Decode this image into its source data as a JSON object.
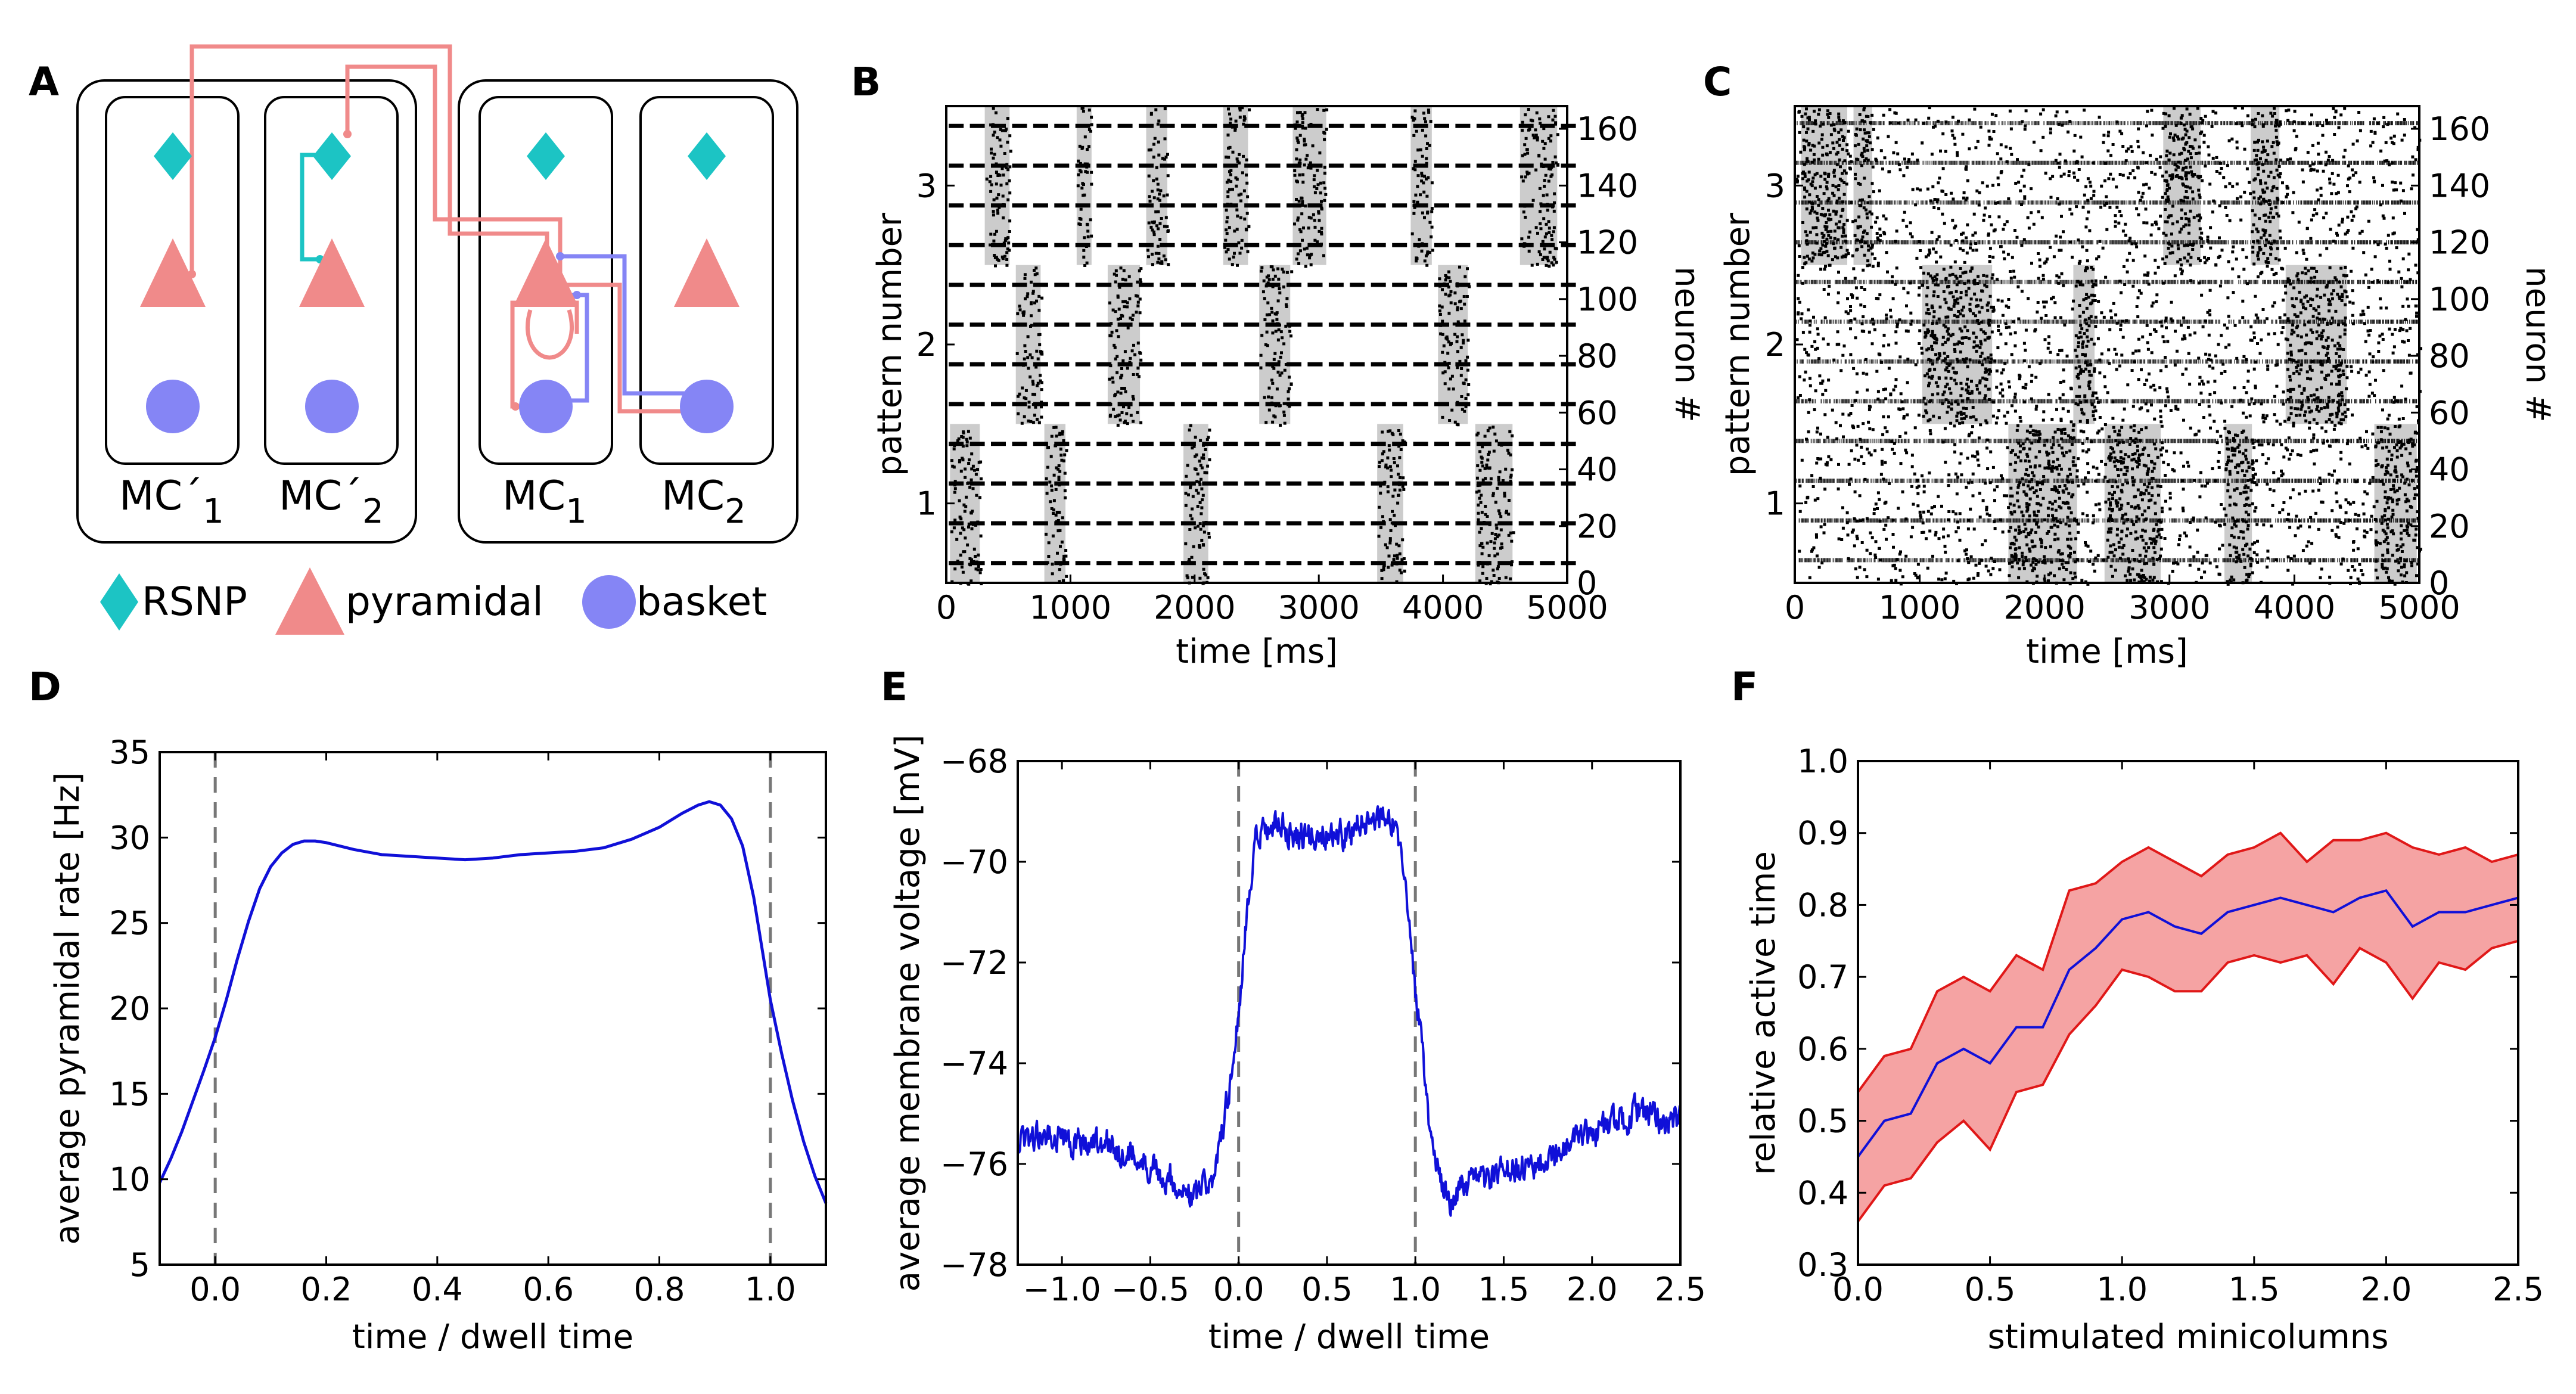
{
  "colors": {
    "rsnp": "#1cc4c4",
    "pyramidal": "#f08a8a",
    "basket": "#8585f5",
    "series_blue": "#1010d8",
    "band_red": "#e01818",
    "band_fill": "#f5a3a3",
    "raster_shade": "#cccccc",
    "dashed": "#777777"
  },
  "panel_letters": [
    "A",
    "B",
    "C",
    "D",
    "E",
    "F"
  ],
  "panel_A": {
    "mc_labels": [
      {
        "base": "MC´",
        "sub": "1"
      },
      {
        "base": "MC´",
        "sub": "2"
      },
      {
        "base": "MC",
        "sub": "1"
      },
      {
        "base": "MC",
        "sub": "2"
      }
    ],
    "legend": [
      {
        "icon": "rsnp-diamond-icon",
        "label": "RSNP"
      },
      {
        "icon": "pyramidal-triangle-icon",
        "label": "pyramidal"
      },
      {
        "icon": "basket-circle-icon",
        "label": "basket"
      }
    ]
  },
  "chart_data": [
    {
      "panel": "B",
      "type": "scatter",
      "title": "",
      "xlabel": "time [ms]",
      "ylabel_left": "pattern number",
      "ylabel_right": "neuron #",
      "xlim": [
        0,
        5000
      ],
      "ylim": [
        0,
        168
      ],
      "x_ticks": [
        0,
        1000,
        2000,
        3000,
        4000,
        5000
      ],
      "y_right_ticks": [
        0,
        20,
        40,
        60,
        80,
        100,
        120,
        140,
        160
      ],
      "y_left_ticks": [
        {
          "label": "1",
          "value": 28
        },
        {
          "label": "2",
          "value": 84
        },
        {
          "label": "3",
          "value": 140
        }
      ],
      "active_periods": [
        {
          "pattern": 1,
          "start": 30,
          "end": 270
        },
        {
          "pattern": 3,
          "start": 310,
          "end": 510
        },
        {
          "pattern": 2,
          "start": 560,
          "end": 760
        },
        {
          "pattern": 1,
          "start": 790,
          "end": 960
        },
        {
          "pattern": 3,
          "start": 1050,
          "end": 1170
        },
        {
          "pattern": 2,
          "start": 1300,
          "end": 1560
        },
        {
          "pattern": 3,
          "start": 1610,
          "end": 1780
        },
        {
          "pattern": 1,
          "start": 1910,
          "end": 2110
        },
        {
          "pattern": 3,
          "start": 2230,
          "end": 2430
        },
        {
          "pattern": 2,
          "start": 2520,
          "end": 2770
        },
        {
          "pattern": 3,
          "start": 2790,
          "end": 3060
        },
        {
          "pattern": 1,
          "start": 3470,
          "end": 3680
        },
        {
          "pattern": 3,
          "start": 3740,
          "end": 3910
        },
        {
          "pattern": 2,
          "start": 3960,
          "end": 4200
        },
        {
          "pattern": 1,
          "start": 4260,
          "end": 4560
        },
        {
          "pattern": 3,
          "start": 4620,
          "end": 4920
        }
      ],
      "tonic_rows": [
        7,
        21,
        35,
        49,
        63,
        77,
        91,
        105,
        119,
        133,
        147,
        161
      ]
    },
    {
      "panel": "C",
      "type": "scatter",
      "title": "",
      "xlabel": "time [ms]",
      "ylabel_left": "pattern number",
      "ylabel_right": "neuron #",
      "xlim": [
        0,
        5000
      ],
      "ylim": [
        0,
        168
      ],
      "x_ticks": [
        0,
        1000,
        2000,
        3000,
        4000,
        5000
      ],
      "y_right_ticks": [
        0,
        20,
        40,
        60,
        80,
        100,
        120,
        140,
        160
      ],
      "y_left_ticks": [
        {
          "label": "1",
          "value": 28
        },
        {
          "label": "2",
          "value": 84
        },
        {
          "label": "3",
          "value": 140
        }
      ],
      "active_periods": [
        {
          "pattern": 3,
          "start": 50,
          "end": 420
        },
        {
          "pattern": 3,
          "start": 470,
          "end": 620
        },
        {
          "pattern": 2,
          "start": 1020,
          "end": 1580
        },
        {
          "pattern": 1,
          "start": 1710,
          "end": 2260
        },
        {
          "pattern": 2,
          "start": 2230,
          "end": 2400
        },
        {
          "pattern": 1,
          "start": 2480,
          "end": 2930
        },
        {
          "pattern": 3,
          "start": 2950,
          "end": 3250
        },
        {
          "pattern": 1,
          "start": 3440,
          "end": 3660
        },
        {
          "pattern": 3,
          "start": 3650,
          "end": 3880
        },
        {
          "pattern": 2,
          "start": 3930,
          "end": 4420
        },
        {
          "pattern": 1,
          "start": 4640,
          "end": 4980
        }
      ],
      "tonic_rows": [
        8,
        22,
        36,
        50,
        64,
        78,
        92,
        106,
        120,
        134,
        148,
        162
      ]
    },
    {
      "panel": "D",
      "type": "line",
      "title": "",
      "xlabel": "time / dwell time",
      "ylabel": "average pyramidal rate [Hz]",
      "xlim": [
        -0.1,
        1.1
      ],
      "ylim": [
        5,
        35
      ],
      "x_ticks": [
        "0.0",
        "0.2",
        "0.4",
        "0.6",
        "0.8",
        "1.0"
      ],
      "y_ticks": [
        "5",
        "10",
        "15",
        "20",
        "25",
        "30",
        "35"
      ],
      "vlines": [
        0.0,
        1.0
      ],
      "series": [
        {
          "name": "average pyramidal rate",
          "x": [
            -0.1,
            -0.08,
            -0.06,
            -0.04,
            -0.02,
            0.0,
            0.02,
            0.04,
            0.06,
            0.08,
            0.1,
            0.12,
            0.14,
            0.16,
            0.18,
            0.2,
            0.25,
            0.3,
            0.35,
            0.4,
            0.45,
            0.5,
            0.55,
            0.6,
            0.65,
            0.7,
            0.75,
            0.8,
            0.84,
            0.87,
            0.89,
            0.91,
            0.93,
            0.95,
            0.97,
            0.99,
            1.0,
            1.02,
            1.04,
            1.06,
            1.08,
            1.1
          ],
          "y": [
            9.8,
            11.2,
            12.8,
            14.6,
            16.4,
            18.3,
            20.5,
            22.9,
            25.1,
            27.0,
            28.3,
            29.1,
            29.6,
            29.8,
            29.8,
            29.7,
            29.3,
            29.0,
            28.9,
            28.8,
            28.7,
            28.8,
            29.0,
            29.1,
            29.2,
            29.4,
            29.9,
            30.6,
            31.4,
            31.9,
            32.1,
            31.9,
            31.1,
            29.5,
            26.5,
            22.5,
            20.5,
            17.4,
            14.6,
            12.2,
            10.2,
            8.6
          ]
        }
      ]
    },
    {
      "panel": "E",
      "type": "line",
      "title": "",
      "xlabel": "time / dwell time",
      "ylabel": "average membrane voltage [mV]",
      "xlim": [
        -1.25,
        2.5
      ],
      "ylim": [
        -78,
        -68
      ],
      "x_ticks": [
        "−1.0",
        "−0.5",
        "0.0",
        "0.5",
        "1.0",
        "1.5",
        "2.0",
        "2.5"
      ],
      "y_ticks": [
        "−78",
        "−76",
        "−74",
        "−72",
        "−70",
        "−68"
      ],
      "vlines": [
        0.0,
        1.0
      ],
      "noise_amplitude_mV": 0.25,
      "series": [
        {
          "name": "average membrane voltage",
          "x": [
            -1.25,
            -1.0,
            -0.75,
            -0.5,
            -0.35,
            -0.25,
            -0.15,
            -0.1,
            -0.05,
            0.0,
            0.05,
            0.1,
            0.2,
            0.4,
            0.6,
            0.75,
            0.85,
            0.9,
            0.95,
            1.0,
            1.05,
            1.1,
            1.15,
            1.2,
            1.3,
            1.5,
            1.75,
            2.0,
            2.25,
            2.5
          ],
          "y": [
            -75.5,
            -75.5,
            -75.6,
            -76.0,
            -76.4,
            -76.7,
            -76.3,
            -75.5,
            -74.5,
            -73.0,
            -71.0,
            -69.6,
            -69.3,
            -69.5,
            -69.4,
            -69.2,
            -68.9,
            -69.6,
            -70.8,
            -72.5,
            -74.2,
            -75.8,
            -76.5,
            -76.7,
            -76.4,
            -76.2,
            -75.9,
            -75.4,
            -75.0,
            -75.2
          ]
        }
      ]
    },
    {
      "panel": "F",
      "type": "area",
      "title": "",
      "xlabel": "stimulated minicolumns",
      "ylabel": "relative active time",
      "xlim": [
        0.0,
        2.5
      ],
      "ylim": [
        0.3,
        1.0
      ],
      "x_ticks": [
        "0.0",
        "0.5",
        "1.0",
        "1.5",
        "2.0",
        "2.5"
      ],
      "y_ticks": [
        "0.3",
        "0.4",
        "0.5",
        "0.6",
        "0.7",
        "0.8",
        "0.9",
        "1.0"
      ],
      "x": [
        0.0,
        0.1,
        0.2,
        0.3,
        0.4,
        0.5,
        0.6,
        0.7,
        0.8,
        0.9,
        1.0,
        1.1,
        1.2,
        1.3,
        1.4,
        1.5,
        1.6,
        1.7,
        1.8,
        1.9,
        2.0,
        2.1,
        2.2,
        2.3,
        2.4,
        2.5
      ],
      "series": [
        {
          "name": "mean",
          "values": [
            0.45,
            0.5,
            0.51,
            0.58,
            0.6,
            0.58,
            0.63,
            0.63,
            0.71,
            0.74,
            0.78,
            0.79,
            0.77,
            0.76,
            0.79,
            0.8,
            0.81,
            0.8,
            0.79,
            0.81,
            0.82,
            0.77,
            0.79,
            0.79,
            0.8,
            0.81
          ]
        },
        {
          "name": "upper",
          "values": [
            0.54,
            0.59,
            0.6,
            0.68,
            0.7,
            0.68,
            0.73,
            0.71,
            0.82,
            0.83,
            0.86,
            0.88,
            0.86,
            0.84,
            0.87,
            0.88,
            0.9,
            0.86,
            0.89,
            0.89,
            0.9,
            0.88,
            0.87,
            0.88,
            0.86,
            0.87
          ]
        },
        {
          "name": "lower",
          "values": [
            0.36,
            0.41,
            0.42,
            0.47,
            0.5,
            0.46,
            0.54,
            0.55,
            0.62,
            0.66,
            0.71,
            0.7,
            0.68,
            0.68,
            0.72,
            0.73,
            0.72,
            0.73,
            0.69,
            0.74,
            0.72,
            0.67,
            0.72,
            0.71,
            0.74,
            0.75
          ]
        }
      ]
    }
  ]
}
